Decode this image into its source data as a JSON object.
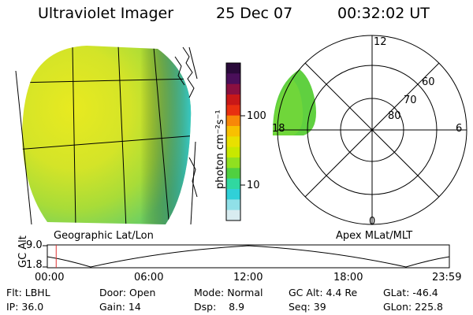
{
  "header": {
    "instrument": "Ultraviolet Imager",
    "date": "25 Dec 07",
    "time": "00:32:02 UT"
  },
  "colorbar": {
    "unit": "photon cm⁻²s⁻¹",
    "ticks": [
      "100",
      "10"
    ],
    "colors": [
      "#2a0a3a",
      "#4a0f5a",
      "#8a1040",
      "#c81818",
      "#e83010",
      "#f88808",
      "#f8c000",
      "#e8e000",
      "#c8e800",
      "#90e020",
      "#50d040",
      "#30d8a0",
      "#30d0d8",
      "#90e0e8",
      "#d8ecf0"
    ]
  },
  "labels": {
    "geo": "Geographic Lat/Lon",
    "apex": "Apex MLat/MLT"
  },
  "polar": {
    "mlt_labels": [
      "12",
      "18",
      "6",
      "0"
    ],
    "lat_labels": [
      "60",
      "70",
      "80"
    ]
  },
  "gc_plot": {
    "ylabel": "GC Alt",
    "yticks": [
      "9.0",
      "1.8"
    ],
    "xticks": [
      "00:00",
      "06:00",
      "12:00",
      "18:00",
      "23:59"
    ],
    "current_hour": 0.53
  },
  "info": {
    "row1": [
      "Flt: LBHL",
      "Door: Open",
      "Mode: Normal",
      "GC Alt: 4.4 Re",
      "GLat: -46.4"
    ],
    "row2": [
      "IP: 36.0",
      "Gain: 14",
      "Dsp:    8.9",
      "Seq: 39",
      "GLon: 225.8"
    ]
  }
}
